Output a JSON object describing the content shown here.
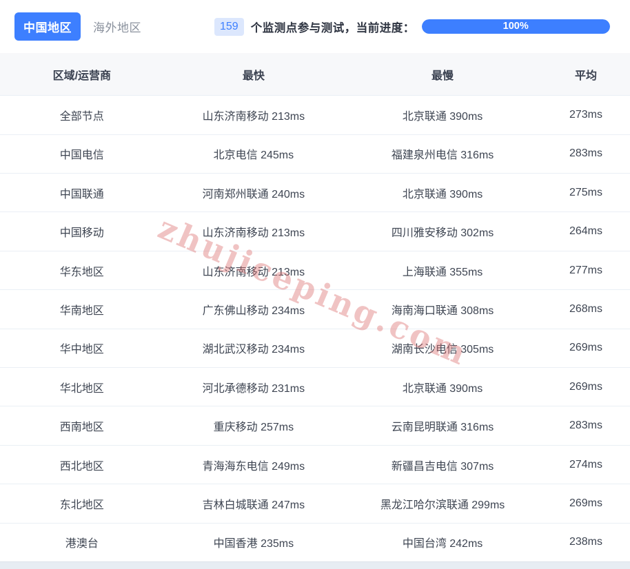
{
  "tabs": {
    "china": "中国地区",
    "overseas": "海外地区"
  },
  "monitor": {
    "count": "159",
    "label": "个监测点参与测试，当前进度：",
    "progress_text": "100%",
    "progress_percent": 100
  },
  "watermark": {
    "text": "zhujiceping.com"
  },
  "colors": {
    "accent": "#3D7FFF",
    "badge_bg": "#DCE7FD",
    "header_bg": "#F7F8FA",
    "row_border": "#EAEFF5",
    "watermark": "rgba(219,112,112,0.42)"
  },
  "table": {
    "headers": [
      "区域/运营商",
      "最快",
      "最慢",
      "平均"
    ],
    "rows": [
      {
        "region": "全部节点",
        "fastest": "山东济南移动 213ms",
        "slowest": "北京联通 390ms",
        "avg": "273ms"
      },
      {
        "region": "中国电信",
        "fastest": "北京电信 245ms",
        "slowest": "福建泉州电信 316ms",
        "avg": "283ms"
      },
      {
        "region": "中国联通",
        "fastest": "河南郑州联通 240ms",
        "slowest": "北京联通 390ms",
        "avg": "275ms"
      },
      {
        "region": "中国移动",
        "fastest": "山东济南移动 213ms",
        "slowest": "四川雅安移动 302ms",
        "avg": "264ms"
      },
      {
        "region": "华东地区",
        "fastest": "山东济南移动 213ms",
        "slowest": "上海联通 355ms",
        "avg": "277ms"
      },
      {
        "region": "华南地区",
        "fastest": "广东佛山移动 234ms",
        "slowest": "海南海口联通 308ms",
        "avg": "268ms"
      },
      {
        "region": "华中地区",
        "fastest": "湖北武汉移动 234ms",
        "slowest": "湖南长沙电信 305ms",
        "avg": "269ms"
      },
      {
        "region": "华北地区",
        "fastest": "河北承德移动 231ms",
        "slowest": "北京联通 390ms",
        "avg": "269ms"
      },
      {
        "region": "西南地区",
        "fastest": "重庆移动 257ms",
        "slowest": "云南昆明联通 316ms",
        "avg": "283ms"
      },
      {
        "region": "西北地区",
        "fastest": "青海海东电信 249ms",
        "slowest": "新疆昌吉电信 307ms",
        "avg": "274ms"
      },
      {
        "region": "东北地区",
        "fastest": "吉林白城联通 247ms",
        "slowest": "黑龙江哈尔滨联通 299ms",
        "avg": "269ms"
      },
      {
        "region": "港澳台",
        "fastest": "中国香港 235ms",
        "slowest": "中国台湾 242ms",
        "avg": "238ms"
      }
    ]
  }
}
